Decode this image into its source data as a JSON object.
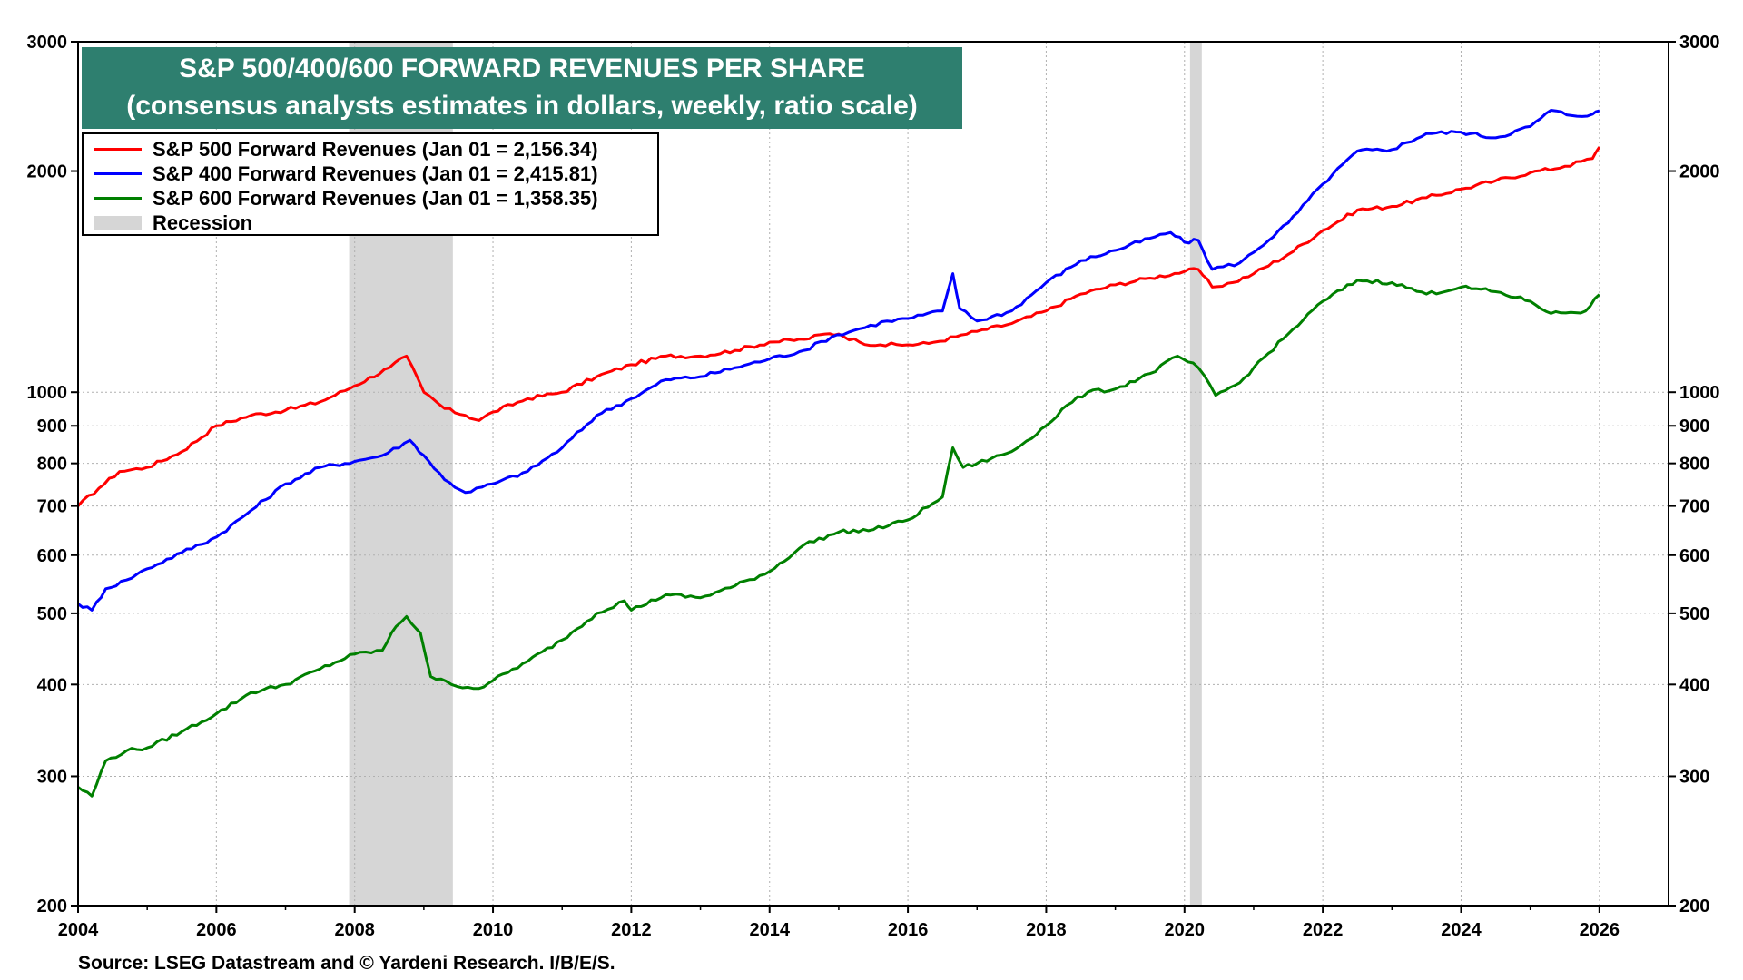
{
  "title": {
    "line1": "S&P 500/400/600 FORWARD REVENUES PER SHARE",
    "line2": "(consensus analysts estimates in dollars, weekly, ratio scale)"
  },
  "source": "Source: LSEG Datastream and © Yardeni Research. I/B/E/S.",
  "legend": {
    "recession_label": "Recession"
  },
  "colors": {
    "sp500": "#ff0000",
    "sp400": "#0000ff",
    "sp600": "#008000",
    "recession": "#d6d6d6",
    "title_bg": "#2e7f6f"
  },
  "chart_data": {
    "type": "line",
    "yscale": "log",
    "ylim": [
      200,
      3000
    ],
    "xlim": [
      2004,
      2027
    ],
    "ytick_labels": [
      "200",
      "300",
      "400",
      "500",
      "600",
      "700",
      "800",
      "900",
      "1000",
      "2000",
      "3000"
    ],
    "xtick_labels": [
      "2004",
      "2006",
      "2008",
      "2010",
      "2012",
      "2014",
      "2016",
      "2018",
      "2020",
      "2022",
      "2024",
      "2026"
    ],
    "recessions": [
      [
        2007.92,
        2009.42
      ],
      [
        2020.08,
        2020.25
      ]
    ],
    "series": [
      {
        "name": "S&P 500 Forward Revenues (Jan 01 = 2,156.34)",
        "color": "#ff0000",
        "points": [
          [
            2004.0,
            700
          ],
          [
            2004.3,
            740
          ],
          [
            2004.6,
            780
          ],
          [
            2005.0,
            790
          ],
          [
            2005.5,
            830
          ],
          [
            2006.0,
            900
          ],
          [
            2006.5,
            930
          ],
          [
            2007.0,
            945
          ],
          [
            2007.5,
            970
          ],
          [
            2008.0,
            1020
          ],
          [
            2008.5,
            1080
          ],
          [
            2008.75,
            1120
          ],
          [
            2009.0,
            1000
          ],
          [
            2009.3,
            950
          ],
          [
            2009.6,
            930
          ],
          [
            2009.8,
            915
          ],
          [
            2010.0,
            940
          ],
          [
            2010.5,
            980
          ],
          [
            2011.0,
            1000
          ],
          [
            2011.5,
            1050
          ],
          [
            2012.0,
            1090
          ],
          [
            2012.5,
            1120
          ],
          [
            2013.0,
            1120
          ],
          [
            2013.5,
            1140
          ],
          [
            2014.0,
            1170
          ],
          [
            2014.5,
            1180
          ],
          [
            2014.8,
            1200
          ],
          [
            2015.0,
            1200
          ],
          [
            2015.3,
            1170
          ],
          [
            2015.6,
            1160
          ],
          [
            2016.0,
            1160
          ],
          [
            2016.3,
            1165
          ],
          [
            2016.7,
            1190
          ],
          [
            2017.0,
            1210
          ],
          [
            2017.5,
            1240
          ],
          [
            2018.0,
            1290
          ],
          [
            2018.5,
            1360
          ],
          [
            2019.0,
            1400
          ],
          [
            2019.5,
            1430
          ],
          [
            2020.0,
            1460
          ],
          [
            2020.2,
            1470
          ],
          [
            2020.4,
            1390
          ],
          [
            2020.7,
            1410
          ],
          [
            2021.0,
            1450
          ],
          [
            2021.5,
            1540
          ],
          [
            2022.0,
            1660
          ],
          [
            2022.5,
            1770
          ],
          [
            2023.0,
            1790
          ],
          [
            2023.5,
            1840
          ],
          [
            2024.0,
            1890
          ],
          [
            2024.5,
            1940
          ],
          [
            2025.0,
            1990
          ],
          [
            2025.5,
            2030
          ],
          [
            2025.9,
            2080
          ],
          [
            2026.0,
            2156
          ]
        ]
      },
      {
        "name": "S&P 400 Forward Revenues (Jan 01 = 2,415.81)",
        "color": "#0000ff",
        "points": [
          [
            2004.0,
            515
          ],
          [
            2004.2,
            505
          ],
          [
            2004.4,
            540
          ],
          [
            2004.7,
            555
          ],
          [
            2005.0,
            575
          ],
          [
            2005.5,
            605
          ],
          [
            2006.0,
            635
          ],
          [
            2006.5,
            690
          ],
          [
            2007.0,
            750
          ],
          [
            2007.5,
            790
          ],
          [
            2008.0,
            805
          ],
          [
            2008.4,
            820
          ],
          [
            2008.8,
            860
          ],
          [
            2009.0,
            820
          ],
          [
            2009.3,
            760
          ],
          [
            2009.6,
            730
          ],
          [
            2010.0,
            750
          ],
          [
            2010.5,
            780
          ],
          [
            2011.0,
            840
          ],
          [
            2011.5,
            930
          ],
          [
            2012.0,
            980
          ],
          [
            2012.5,
            1040
          ],
          [
            2013.0,
            1050
          ],
          [
            2013.5,
            1080
          ],
          [
            2014.0,
            1110
          ],
          [
            2014.5,
            1140
          ],
          [
            2014.9,
            1190
          ],
          [
            2015.3,
            1220
          ],
          [
            2015.7,
            1250
          ],
          [
            2016.0,
            1260
          ],
          [
            2016.5,
            1290
          ],
          [
            2016.65,
            1450
          ],
          [
            2016.75,
            1300
          ],
          [
            2017.0,
            1250
          ],
          [
            2017.5,
            1290
          ],
          [
            2018.0,
            1410
          ],
          [
            2018.5,
            1510
          ],
          [
            2019.0,
            1560
          ],
          [
            2019.5,
            1620
          ],
          [
            2019.8,
            1650
          ],
          [
            2020.0,
            1600
          ],
          [
            2020.2,
            1610
          ],
          [
            2020.4,
            1470
          ],
          [
            2020.8,
            1500
          ],
          [
            2021.0,
            1550
          ],
          [
            2021.5,
            1700
          ],
          [
            2022.0,
            1920
          ],
          [
            2022.5,
            2130
          ],
          [
            2023.0,
            2140
          ],
          [
            2023.5,
            2250
          ],
          [
            2024.0,
            2260
          ],
          [
            2024.5,
            2220
          ],
          [
            2025.0,
            2300
          ],
          [
            2025.3,
            2420
          ],
          [
            2025.6,
            2380
          ],
          [
            2025.9,
            2390
          ],
          [
            2026.0,
            2416
          ]
        ]
      },
      {
        "name": "S&P 600 Forward Revenues (Jan 01 = 1,358.35)",
        "color": "#008000",
        "points": [
          [
            2004.0,
            290
          ],
          [
            2004.2,
            282
          ],
          [
            2004.4,
            315
          ],
          [
            2004.7,
            325
          ],
          [
            2005.0,
            328
          ],
          [
            2005.5,
            345
          ],
          [
            2006.0,
            365
          ],
          [
            2006.5,
            390
          ],
          [
            2007.0,
            400
          ],
          [
            2007.5,
            420
          ],
          [
            2008.0,
            440
          ],
          [
            2008.4,
            445
          ],
          [
            2008.6,
            480
          ],
          [
            2008.75,
            495
          ],
          [
            2008.95,
            470
          ],
          [
            2009.1,
            410
          ],
          [
            2009.4,
            400
          ],
          [
            2009.8,
            395
          ],
          [
            2010.0,
            405
          ],
          [
            2010.5,
            430
          ],
          [
            2011.0,
            460
          ],
          [
            2011.5,
            500
          ],
          [
            2011.9,
            520
          ],
          [
            2012.0,
            505
          ],
          [
            2012.5,
            530
          ],
          [
            2013.0,
            525
          ],
          [
            2013.5,
            545
          ],
          [
            2014.0,
            570
          ],
          [
            2014.5,
            620
          ],
          [
            2015.0,
            645
          ],
          [
            2015.5,
            650
          ],
          [
            2016.0,
            670
          ],
          [
            2016.5,
            720
          ],
          [
            2016.65,
            840
          ],
          [
            2016.8,
            790
          ],
          [
            2017.0,
            800
          ],
          [
            2017.5,
            830
          ],
          [
            2018.0,
            900
          ],
          [
            2018.3,
            960
          ],
          [
            2018.6,
            1000
          ],
          [
            2019.0,
            1010
          ],
          [
            2019.5,
            1060
          ],
          [
            2019.9,
            1120
          ],
          [
            2020.2,
            1080
          ],
          [
            2020.45,
            990
          ],
          [
            2020.8,
            1030
          ],
          [
            2021.0,
            1080
          ],
          [
            2021.5,
            1200
          ],
          [
            2022.0,
            1330
          ],
          [
            2022.5,
            1420
          ],
          [
            2023.0,
            1410
          ],
          [
            2023.5,
            1360
          ],
          [
            2024.0,
            1390
          ],
          [
            2024.5,
            1370
          ],
          [
            2025.0,
            1330
          ],
          [
            2025.3,
            1280
          ],
          [
            2025.8,
            1290
          ],
          [
            2026.0,
            1358
          ]
        ]
      }
    ]
  }
}
